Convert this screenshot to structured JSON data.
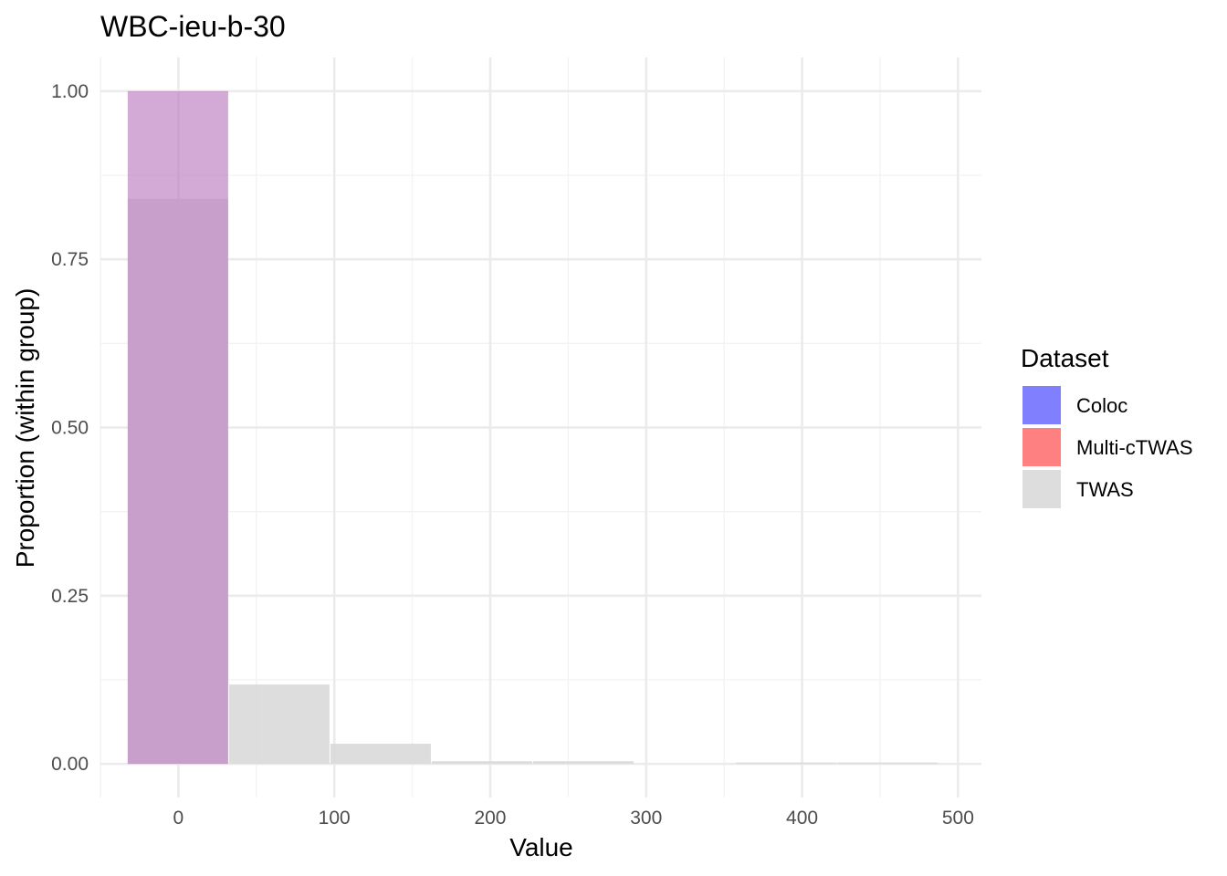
{
  "chart_data": {
    "type": "histogram",
    "title": "WBC-ieu-b-30",
    "xlabel": "Value",
    "ylabel": "Proportion (within group)",
    "xlim": [
      -50,
      515
    ],
    "ylim": [
      -0.05,
      1.05
    ],
    "x_ticks": [
      0,
      100,
      200,
      300,
      400,
      500
    ],
    "x_tick_labels": [
      "0",
      "100",
      "200",
      "300",
      "400",
      "500"
    ],
    "y_ticks": [
      0,
      0.25,
      0.5,
      0.75,
      1.0
    ],
    "y_tick_labels": [
      "0.00",
      "0.25",
      "0.50",
      "0.75",
      "1.00"
    ],
    "grid": true,
    "legend": {
      "title": "Dataset",
      "position": "right",
      "entries": [
        {
          "name": "Coloc",
          "color": "#8080ff"
        },
        {
          "name": "Multi-cTWAS",
          "color": "#ff8080"
        },
        {
          "name": "TWAS",
          "color": "#dddddd"
        }
      ]
    },
    "series": [
      {
        "name": "TWAS",
        "color": "#d9d9d9",
        "bins": [
          {
            "x0": -32.5,
            "x1": 32.5,
            "value": 0.84
          },
          {
            "x0": 32.5,
            "x1": 97.5,
            "value": 0.118
          },
          {
            "x0": 97.5,
            "x1": 162.5,
            "value": 0.03
          },
          {
            "x0": 162.5,
            "x1": 227.5,
            "value": 0.004
          },
          {
            "x0": 227.5,
            "x1": 292.5,
            "value": 0.004
          },
          {
            "x0": 292.5,
            "x1": 357.5,
            "value": 0.0
          },
          {
            "x0": 357.5,
            "x1": 422.5,
            "value": 0.002
          },
          {
            "x0": 422.5,
            "x1": 487.5,
            "value": 0.002
          }
        ]
      },
      {
        "name": "Multi-cTWAS",
        "color": "#ff8080",
        "bins": [
          {
            "x0": -32.5,
            "x1": 32.5,
            "value": 1.0
          }
        ]
      },
      {
        "name": "Coloc",
        "color": "#8080ff",
        "bins": [
          {
            "x0": -32.5,
            "x1": 32.5,
            "value": 1.0
          }
        ]
      }
    ]
  }
}
